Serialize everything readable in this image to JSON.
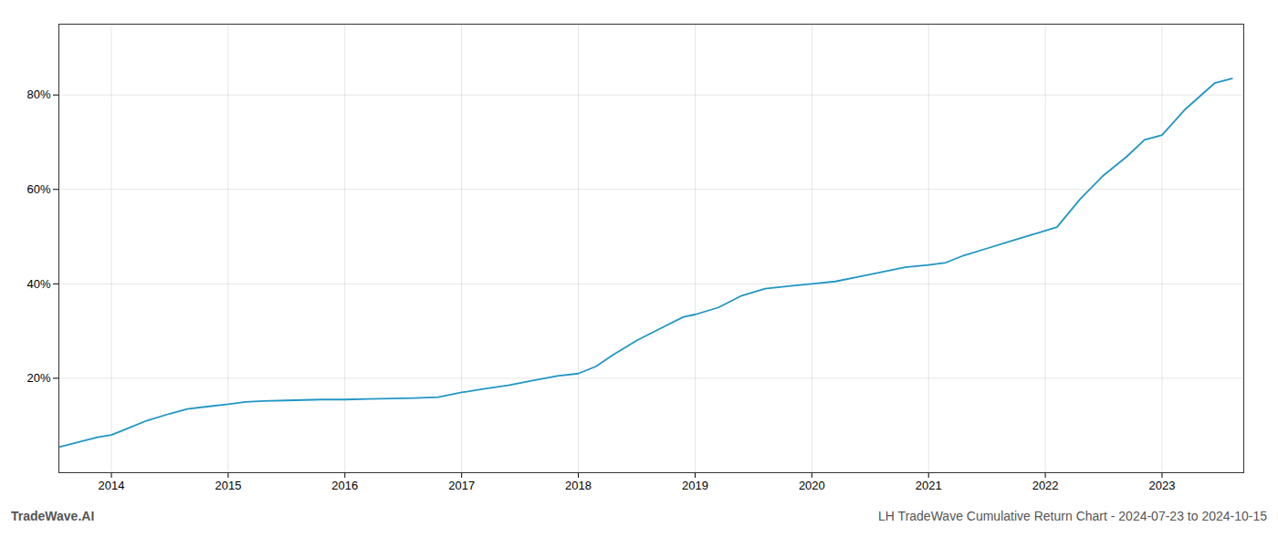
{
  "chart_data": {
    "type": "line",
    "x": [
      2013.56,
      2013.72,
      2013.88,
      2014.0,
      2014.15,
      2014.3,
      2014.5,
      2014.65,
      2014.82,
      2015.0,
      2015.15,
      2015.3,
      2015.5,
      2015.65,
      2015.8,
      2016.0,
      2016.2,
      2016.4,
      2016.6,
      2016.8,
      2017.0,
      2017.2,
      2017.4,
      2017.6,
      2017.82,
      2018.0,
      2018.15,
      2018.3,
      2018.5,
      2018.7,
      2018.9,
      2019.0,
      2019.2,
      2019.4,
      2019.6,
      2019.8,
      2020.0,
      2020.2,
      2020.4,
      2020.6,
      2020.8,
      2021.0,
      2021.15,
      2021.3,
      2021.5,
      2021.7,
      2021.9,
      2022.1,
      2022.3,
      2022.5,
      2022.7,
      2022.85,
      2023.0,
      2023.2,
      2023.45,
      2023.6
    ],
    "values": [
      5.5,
      6.5,
      7.5,
      8.0,
      9.5,
      11.0,
      12.5,
      13.5,
      14.0,
      14.5,
      15.0,
      15.2,
      15.3,
      15.4,
      15.5,
      15.5,
      15.6,
      15.7,
      15.8,
      16.0,
      17.0,
      17.8,
      18.5,
      19.5,
      20.5,
      21.0,
      22.5,
      25.0,
      28.0,
      30.5,
      33.0,
      33.5,
      35.0,
      37.5,
      39.0,
      39.5,
      40.0,
      40.5,
      41.5,
      42.5,
      43.5,
      44.0,
      44.5,
      46.0,
      47.5,
      49.0,
      50.5,
      52.0,
      58.0,
      63.0,
      67.0,
      70.5,
      71.5,
      77.0,
      82.5,
      83.5
    ],
    "color": "#2196c4",
    "xlim": [
      2013.55,
      2023.7
    ],
    "xticks": [
      2014,
      2015,
      2016,
      2017,
      2018,
      2019,
      2020,
      2021,
      2022,
      2023
    ],
    "ylim": [
      0,
      95
    ],
    "yticks": [
      {
        "value": 20,
        "label": "20%"
      },
      {
        "value": 40,
        "label": "40%"
      },
      {
        "value": 60,
        "label": "60%"
      },
      {
        "value": 80,
        "label": "80%"
      }
    ],
    "grid": true,
    "annotations": [
      "TradeWave.AI",
      "LH TradeWave Cumulative Return Chart - 2024-07-23 to 2024-10-15"
    ]
  }
}
